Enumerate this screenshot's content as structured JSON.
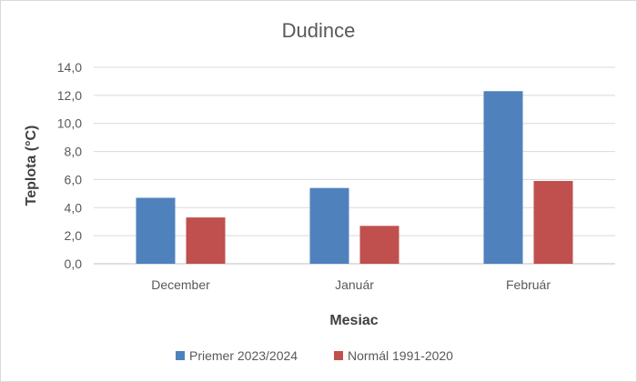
{
  "chart_data": {
    "type": "bar",
    "title": "Dudince",
    "xlabel": "Mesiac",
    "ylabel": "Teplota (°C)",
    "categories": [
      "December",
      "Január",
      "Február"
    ],
    "series": [
      {
        "name": "Priemer 2023/2024",
        "values": [
          4.7,
          5.4,
          12.3
        ],
        "color": "#4f81bd"
      },
      {
        "name": "Normál 1991-2020",
        "values": [
          3.3,
          2.7,
          5.9
        ],
        "color": "#c0504d"
      }
    ],
    "ylim": [
      0,
      14
    ],
    "yticks": [
      "0,0",
      "2,0",
      "4,0",
      "6,0",
      "8,0",
      "10,0",
      "12,0",
      "14,0"
    ],
    "grid": true,
    "legend_position": "bottom"
  }
}
